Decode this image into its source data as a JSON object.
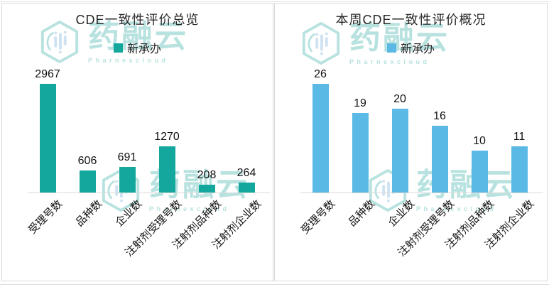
{
  "watermark": {
    "brand": "药融云",
    "subbrand": "Pharnexcloud"
  },
  "colors": {
    "teal_bar": "#13a79e",
    "blue_bar": "#5bb9e6",
    "axis_line": "#d9d9d9",
    "watermark": "#7fccc5",
    "text": "#111111"
  },
  "chart_data": [
    {
      "type": "bar",
      "title": "CDE一致性评价总览",
      "categories": [
        "受理号数",
        "品种数",
        "企业数",
        "注射剂受理号数",
        "注射剂品种数",
        "注射剂企业数"
      ],
      "series": [
        {
          "name": "新承办",
          "values": [
            2967,
            606,
            691,
            1270,
            208,
            264
          ]
        }
      ],
      "bar_color": "#13a79e",
      "xlabel": "",
      "ylabel": "",
      "ylim": [
        0,
        3000
      ],
      "grid": false,
      "legend_position": "top",
      "data_labels": true
    },
    {
      "type": "bar",
      "title": "本周CDE一致性评价概况",
      "categories": [
        "受理号数",
        "品种数",
        "企业数",
        "注射剂受理号数",
        "注射剂品种数",
        "注射剂企业数"
      ],
      "series": [
        {
          "name": "新承办",
          "values": [
            26,
            19,
            20,
            16,
            10,
            11
          ]
        }
      ],
      "bar_color": "#5bb9e6",
      "xlabel": "",
      "ylabel": "",
      "ylim": [
        0,
        28
      ],
      "grid": false,
      "legend_position": "top",
      "data_labels": true
    }
  ]
}
